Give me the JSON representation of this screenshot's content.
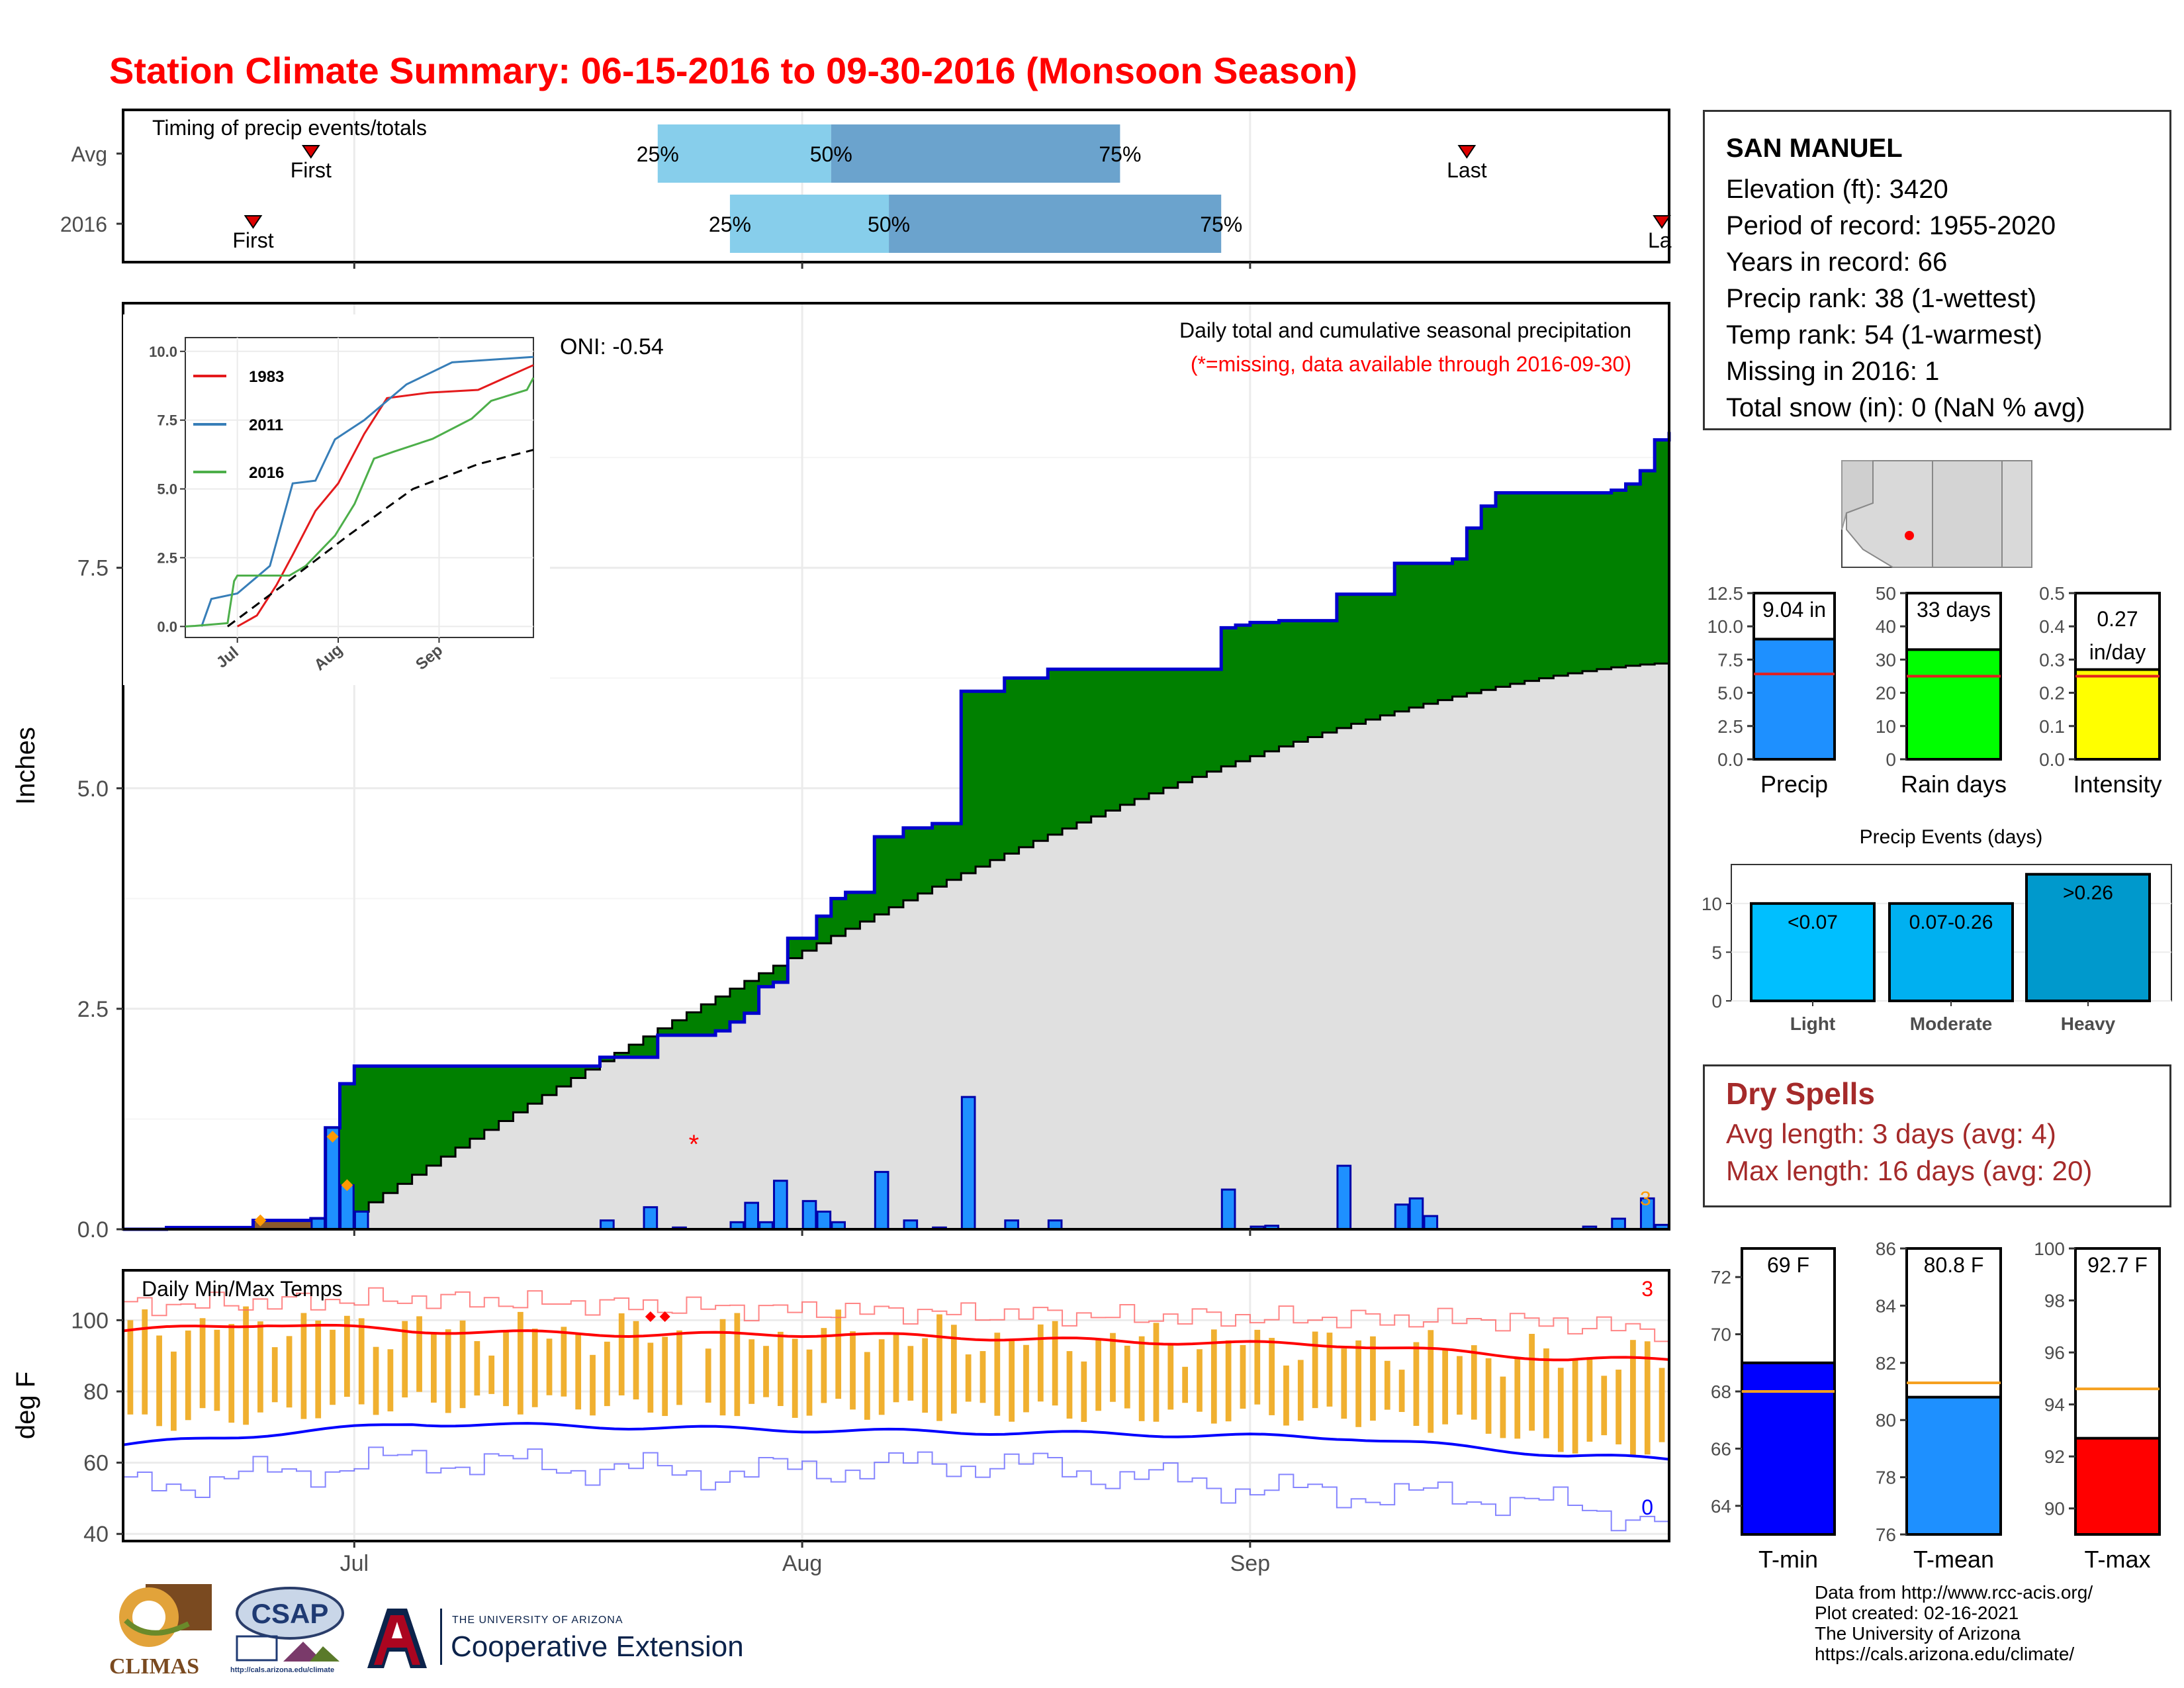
{
  "title": "Station Climate Summary: 06-15-2016 to 09-30-2016 (Monsoon Season)",
  "colors": {
    "title": "#ff0000",
    "precip_bar": "#1e90ff",
    "cum_area": "#008000",
    "cum_outline": "#0000cd",
    "avg_area": "#e0e0e0",
    "rain_days": "#00ff00",
    "intensity": "#ffff00",
    "tmin": "#0000ff",
    "tmax": "#ff0000",
    "tmean": "#1e90ff",
    "range_bars": "#f0b030",
    "light": "#00bfff",
    "moderate": "#00b0f0",
    "heavy": "#0099cc",
    "dry_spells": "#a52a2a"
  },
  "timing": {
    "title": "Timing of precip events/totals",
    "rows": [
      {
        "label": "Avg",
        "first_label": "First",
        "last_label": "Last",
        "p25": "25%",
        "p50": "50%",
        "p75": "75%"
      },
      {
        "label": "2016",
        "first_label": "First",
        "last_label": "La",
        "p25": "25%",
        "p50": "50%",
        "p75": "75%"
      }
    ]
  },
  "station": {
    "name": "SAN MANUEL",
    "lines": [
      "Elevation (ft): 3420",
      "Period of record: 1955-2020",
      "Years in record: 66",
      "Precip rank: 38 (1-wettest)",
      "Temp rank: 54 (1-warmest)",
      "Missing in 2016: 1",
      "Total snow (in): 0 (NaN % avg)"
    ]
  },
  "dry_spells": {
    "title": "Dry Spells",
    "avg_line": "Avg length: 3 days (avg: 4)",
    "max_line": "Max length: 16 days (avg: 20)"
  },
  "credits": [
    "Data from http://www.rcc-acis.org/",
    "Plot created: 02-16-2021",
    "The University of Arizona",
    "https://cals.arizona.edu/climate/"
  ],
  "logos": {
    "climas": "CLIMAS",
    "csap": "CSAP",
    "csap_url": "http://cals.arizona.edu/climate",
    "ua_small": "THE UNIVERSITY OF ARIZONA",
    "ua_big": "Cooperative Extension"
  },
  "chart_data": [
    {
      "id": "precip_main",
      "type": "area",
      "title": "Daily total and cumulative seasonal precipitation",
      "subtitle": "(*=missing, data available through 2016-09-30)",
      "oni_label": "ONI: -0.54",
      "ylabel": "Inches",
      "ylim": [
        0,
        10
      ],
      "yticks": [
        0.0,
        2.5,
        5.0,
        7.5
      ],
      "x_ticks": [
        {
          "day": 16,
          "label": "Jul"
        },
        {
          "day": 47,
          "label": "Aug"
        },
        {
          "day": 78,
          "label": "Sep"
        }
      ],
      "x_range_days": [
        0,
        107
      ],
      "cumulative_2016_steps": [
        [
          0,
          0
        ],
        [
          3,
          0.02
        ],
        [
          9,
          0.1
        ],
        [
          11,
          0.1
        ],
        [
          13,
          0.12
        ],
        [
          14,
          1.15
        ],
        [
          15,
          1.65
        ],
        [
          16,
          1.85
        ],
        [
          32,
          1.85
        ],
        [
          33,
          1.95
        ],
        [
          36,
          1.95
        ],
        [
          37,
          2.2
        ],
        [
          41,
          2.25
        ],
        [
          42,
          2.35
        ],
        [
          43,
          2.45
        ],
        [
          44,
          2.75
        ],
        [
          45,
          2.8
        ],
        [
          46,
          3.3
        ],
        [
          48,
          3.55
        ],
        [
          49,
          3.75
        ],
        [
          50,
          3.82
        ],
        [
          51,
          3.82
        ],
        [
          52,
          4.45
        ],
        [
          54,
          4.55
        ],
        [
          56,
          4.6
        ],
        [
          57,
          4.6
        ],
        [
          58,
          6.1
        ],
        [
          61,
          6.25
        ],
        [
          63,
          6.25
        ],
        [
          64,
          6.35
        ],
        [
          75,
          6.35
        ],
        [
          76,
          6.82
        ],
        [
          77,
          6.85
        ],
        [
          78,
          6.88
        ],
        [
          80,
          6.9
        ],
        [
          83,
          6.9
        ],
        [
          84,
          7.2
        ],
        [
          87,
          7.2
        ],
        [
          88,
          7.55
        ],
        [
          91,
          7.55
        ],
        [
          92,
          7.6
        ],
        [
          93,
          7.95
        ],
        [
          94,
          8.2
        ],
        [
          95,
          8.35
        ],
        [
          103,
          8.38
        ],
        [
          104,
          8.45
        ],
        [
          105,
          8.6
        ],
        [
          106,
          8.95
        ],
        [
          107,
          9.04
        ]
      ],
      "avg_cum_start": [
        16,
        0.2
      ],
      "avg_cum_end": [
        107,
        6.42
      ],
      "daily_precip": [
        {
          "day": 13,
          "v": 0.12
        },
        {
          "day": 14,
          "v": 1.15
        },
        {
          "day": 15,
          "v": 0.5
        },
        {
          "day": 16,
          "v": 0.2
        },
        {
          "day": 33,
          "v": 0.1
        },
        {
          "day": 36,
          "v": 0.25
        },
        {
          "day": 38,
          "v": 0.02
        },
        {
          "day": 42,
          "v": 0.08
        },
        {
          "day": 43,
          "v": 0.3
        },
        {
          "day": 44,
          "v": 0.08
        },
        {
          "day": 45,
          "v": 0.55
        },
        {
          "day": 47,
          "v": 0.32
        },
        {
          "day": 48,
          "v": 0.2
        },
        {
          "day": 49,
          "v": 0.08
        },
        {
          "day": 52,
          "v": 0.65
        },
        {
          "day": 54,
          "v": 0.1
        },
        {
          "day": 56,
          "v": 0.02
        },
        {
          "day": 58,
          "v": 1.5
        },
        {
          "day": 61,
          "v": 0.1
        },
        {
          "day": 64,
          "v": 0.1
        },
        {
          "day": 76,
          "v": 0.45
        },
        {
          "day": 78,
          "v": 0.03
        },
        {
          "day": 79,
          "v": 0.04
        },
        {
          "day": 84,
          "v": 0.72
        },
        {
          "day": 88,
          "v": 0.28
        },
        {
          "day": 89,
          "v": 0.35
        },
        {
          "day": 90,
          "v": 0.15
        },
        {
          "day": 101,
          "v": 0.03
        },
        {
          "day": 103,
          "v": 0.12
        },
        {
          "day": 105,
          "v": 0.35
        },
        {
          "day": 106,
          "v": 0.05
        }
      ],
      "missing_marker": {
        "day": 39,
        "v": 1.0
      }
    },
    {
      "id": "inset_cumulative",
      "type": "line",
      "ylim": [
        0,
        10
      ],
      "yticks": [
        0.0,
        2.5,
        5.0,
        7.5,
        10.0
      ],
      "x_ticks": [
        "Jul",
        "Aug",
        "Sep"
      ],
      "series": [
        {
          "name": "1983",
          "color": "#e41a1c",
          "values": [
            [
              16,
              0.0
            ],
            [
              22,
              0.4
            ],
            [
              28,
              1.5
            ],
            [
              33,
              2.6
            ],
            [
              40,
              4.2
            ],
            [
              47,
              5.2
            ],
            [
              55,
              7.0
            ],
            [
              62,
              8.3
            ],
            [
              75,
              8.5
            ],
            [
              90,
              8.6
            ],
            [
              107,
              9.5
            ]
          ]
        },
        {
          "name": "2011",
          "color": "#377eb8",
          "values": [
            [
              5,
              0.0
            ],
            [
              8,
              1.0
            ],
            [
              16,
              1.2
            ],
            [
              26,
              2.2
            ],
            [
              33,
              5.2
            ],
            [
              40,
              5.3
            ],
            [
              46,
              6.8
            ],
            [
              55,
              7.5
            ],
            [
              68,
              8.8
            ],
            [
              82,
              9.6
            ],
            [
              107,
              9.8
            ]
          ]
        },
        {
          "name": "2016",
          "color": "#4daf4a",
          "values": [
            [
              0,
              0
            ],
            [
              3,
              0.02
            ],
            [
              13,
              0.12
            ],
            [
              15,
              1.65
            ],
            [
              16,
              1.85
            ],
            [
              32,
              1.85
            ],
            [
              37,
              2.2
            ],
            [
              46,
              3.3
            ],
            [
              52,
              4.45
            ],
            [
              58,
              6.1
            ],
            [
              64,
              6.35
            ],
            [
              76,
              6.82
            ],
            [
              88,
              7.55
            ],
            [
              94,
              8.2
            ],
            [
              105,
              8.6
            ],
            [
              107,
              9.04
            ]
          ]
        },
        {
          "name": "avg",
          "color": "#000000",
          "dash": true,
          "values": [
            [
              13,
              0.0
            ],
            [
              30,
              1.5
            ],
            [
              50,
              3.3
            ],
            [
              70,
              5.0
            ],
            [
              90,
              5.9
            ],
            [
              107,
              6.42
            ]
          ]
        }
      ]
    },
    {
      "id": "temps",
      "type": "line",
      "title": "Daily Min/Max Temps",
      "ylabel": "deg F",
      "ylim": [
        38,
        114
      ],
      "yticks": [
        40,
        60,
        80,
        100
      ],
      "corner_top": "3",
      "corner_bottom": "0",
      "series": [
        {
          "name": "avg_tmax",
          "values": [
            [
              0,
              97
            ],
            [
              10,
              99
            ],
            [
              20,
              97
            ],
            [
              35,
              96
            ],
            [
              50,
              96
            ],
            [
              70,
              94
            ],
            [
              85,
              93
            ],
            [
              100,
              89
            ],
            [
              107,
              89
            ]
          ]
        },
        {
          "name": "avg_tmin",
          "values": [
            [
              0,
              65
            ],
            [
              10,
              68
            ],
            [
              20,
              71
            ],
            [
              35,
              70
            ],
            [
              50,
              69
            ],
            [
              70,
              68
            ],
            [
              85,
              67
            ],
            [
              100,
              62
            ],
            [
              107,
              61
            ]
          ]
        },
        {
          "name": "record_tmax",
          "values": [
            [
              0,
              104
            ],
            [
              20,
              106
            ],
            [
              45,
              103
            ],
            [
              70,
              101
            ],
            [
              95,
              100
            ],
            [
              107,
              97
            ]
          ]
        },
        {
          "name": "record_tmin",
          "values": [
            [
              0,
              53
            ],
            [
              10,
              57
            ],
            [
              20,
              61
            ],
            [
              40,
              57
            ],
            [
              60,
              60
            ],
            [
              80,
              52
            ],
            [
              95,
              50
            ],
            [
              107,
              44
            ]
          ]
        }
      ]
    },
    {
      "id": "precip_bars",
      "type": "bar",
      "categories": [
        "Precip",
        "Rain days",
        "Intensity"
      ],
      "values": [
        9.04,
        33,
        0.27
      ],
      "value_labels": [
        "9.04 in",
        "33 days",
        "0.27 in/day"
      ],
      "averages": [
        6.42,
        25,
        0.25
      ],
      "ylims": [
        [
          0,
          12.5
        ],
        [
          0,
          50
        ],
        [
          0,
          0.5
        ]
      ],
      "yticks": [
        [
          "0.0",
          "2.5",
          "5.0",
          "7.5",
          "10.0",
          "12.5"
        ],
        [
          "0",
          "10",
          "20",
          "30",
          "40",
          "50"
        ],
        [
          "0.0",
          "0.1",
          "0.2",
          "0.3",
          "0.4",
          "0.5"
        ]
      ]
    },
    {
      "id": "precip_events",
      "type": "bar",
      "title": "Precip Events (days)",
      "categories": [
        "Light",
        "Moderate",
        "Heavy"
      ],
      "bar_labels": [
        "<0.07",
        "0.07-0.26",
        ">0.26"
      ],
      "values": [
        10,
        10,
        13
      ],
      "ylim": [
        0,
        14
      ],
      "yticks": [
        0,
        5,
        10
      ]
    },
    {
      "id": "temp_bars",
      "type": "bar",
      "categories": [
        "T-min",
        "T-mean",
        "T-max"
      ],
      "values": [
        69,
        80.8,
        92.7
      ],
      "value_labels": [
        "69 F",
        "80.8 F",
        "92.7 F"
      ],
      "averages": [
        68,
        81.3,
        94.6
      ],
      "ylims": [
        [
          63,
          73
        ],
        [
          76,
          86
        ],
        [
          89,
          100
        ]
      ],
      "yticks": [
        [
          64,
          66,
          68,
          70,
          72
        ],
        [
          76,
          78,
          80,
          82,
          84,
          86
        ],
        [
          90,
          92,
          94,
          96,
          98,
          100
        ]
      ]
    }
  ]
}
